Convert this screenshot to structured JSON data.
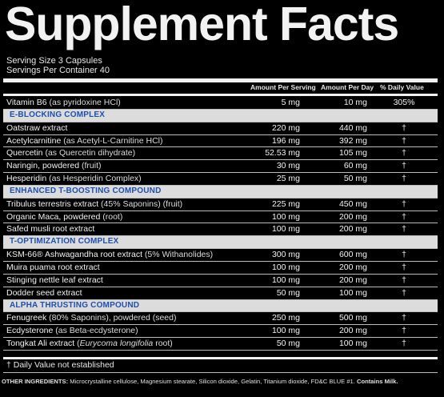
{
  "title": "Supplement Facts",
  "serving_size": "Serving Size 3 Capsules",
  "servings_per_container": "Servings Per Container 40",
  "columns": {
    "per_serving": "Amount Per Serving",
    "per_day": "Amount Per Day",
    "daily_value": "% Daily Value"
  },
  "rows": [
    {
      "type": "item",
      "name": "Vitamin B6",
      "detail": " (as pyridoxine HCl)",
      "serv": "5 mg",
      "day": "10 mg",
      "dv": "305%"
    },
    {
      "type": "section",
      "name": "E-BLOCKING COMPLEX"
    },
    {
      "type": "item",
      "name": "Oatstraw extract",
      "detail": "",
      "serv": "220 mg",
      "day": "440 mg",
      "dv": "†"
    },
    {
      "type": "item",
      "name": "Acetylcarnitine",
      "detail": " (as Acetyl-L-Carnitine HCl)",
      "serv": "196 mg",
      "day": "392 mg",
      "dv": "†"
    },
    {
      "type": "item",
      "name": "Quercetin",
      "detail": " (as Quercetin dihydrate)",
      "serv": "52.53 mg",
      "day": "105 mg",
      "dv": "†"
    },
    {
      "type": "item",
      "name": "Naringin, powdered",
      "detail": " (fruit)",
      "serv": "30 mg",
      "day": "60 mg",
      "dv": "†"
    },
    {
      "type": "item",
      "name": "Hesperidin",
      "detail": " (as Hesperidin Complex)",
      "serv": "25 mg",
      "day": "50 mg",
      "dv": "†"
    },
    {
      "type": "section",
      "name": "ENHANCED T-BOOSTING COMPOUND"
    },
    {
      "type": "item",
      "name": "Tribulus terrestris extract",
      "detail": " (45% Saponins) (fruit)",
      "serv": "225 mg",
      "day": "450 mg",
      "dv": "†"
    },
    {
      "type": "item",
      "name": "Organic Maca, powdered",
      "detail": " (root)",
      "serv": "100 mg",
      "day": "200 mg",
      "dv": "†"
    },
    {
      "type": "item",
      "name": "Safed musli root extract",
      "detail": "",
      "serv": "100 mg",
      "day": "200 mg",
      "dv": "†"
    },
    {
      "type": "section",
      "name": "T-OPTIMIZATION COMPLEX"
    },
    {
      "type": "item",
      "name": "KSM-66® Ashwagandha root extract",
      "detail": " (5% Withanolides)",
      "serv": "300 mg",
      "day": "600 mg",
      "dv": "†"
    },
    {
      "type": "item",
      "name": "Muira puama root extract",
      "detail": "",
      "serv": "100 mg",
      "day": "200 mg",
      "dv": "†"
    },
    {
      "type": "item",
      "name": "Stinging nettle leaf extract",
      "detail": "",
      "serv": "100 mg",
      "day": "200 mg",
      "dv": "†"
    },
    {
      "type": "item",
      "name": "Dodder seed extract",
      "detail": "",
      "serv": "50 mg",
      "day": "100 mg",
      "dv": "†"
    },
    {
      "type": "section",
      "name": "ALPHA THRUSTING COMPOUND"
    },
    {
      "type": "item",
      "name": "Fenugreek",
      "detail": " (80% Saponins), powdered (seed)",
      "serv": "250 mg",
      "day": "500 mg",
      "dv": "†"
    },
    {
      "type": "item",
      "name": "Ecdysterone",
      "detail": " (as Beta-ecdysterone)",
      "serv": "100 mg",
      "day": "200 mg",
      "dv": "†"
    },
    {
      "type": "item",
      "name": "Tongkat Ali extract",
      "detail": " (Eurycoma longifolia root)",
      "serv": "50 mg",
      "day": "100 mg",
      "dv": "†"
    }
  ],
  "footnote": "† Daily Value not established",
  "other_ingredients": {
    "label": "OTHER INGREDIENTS:",
    "text": " Microcrystalline cellulose, Magnesium stearate, Silicon dioxide, Gelatin, Titanium dioxide, FD&C BLUE #1. ",
    "contains": "Contains Milk."
  }
}
